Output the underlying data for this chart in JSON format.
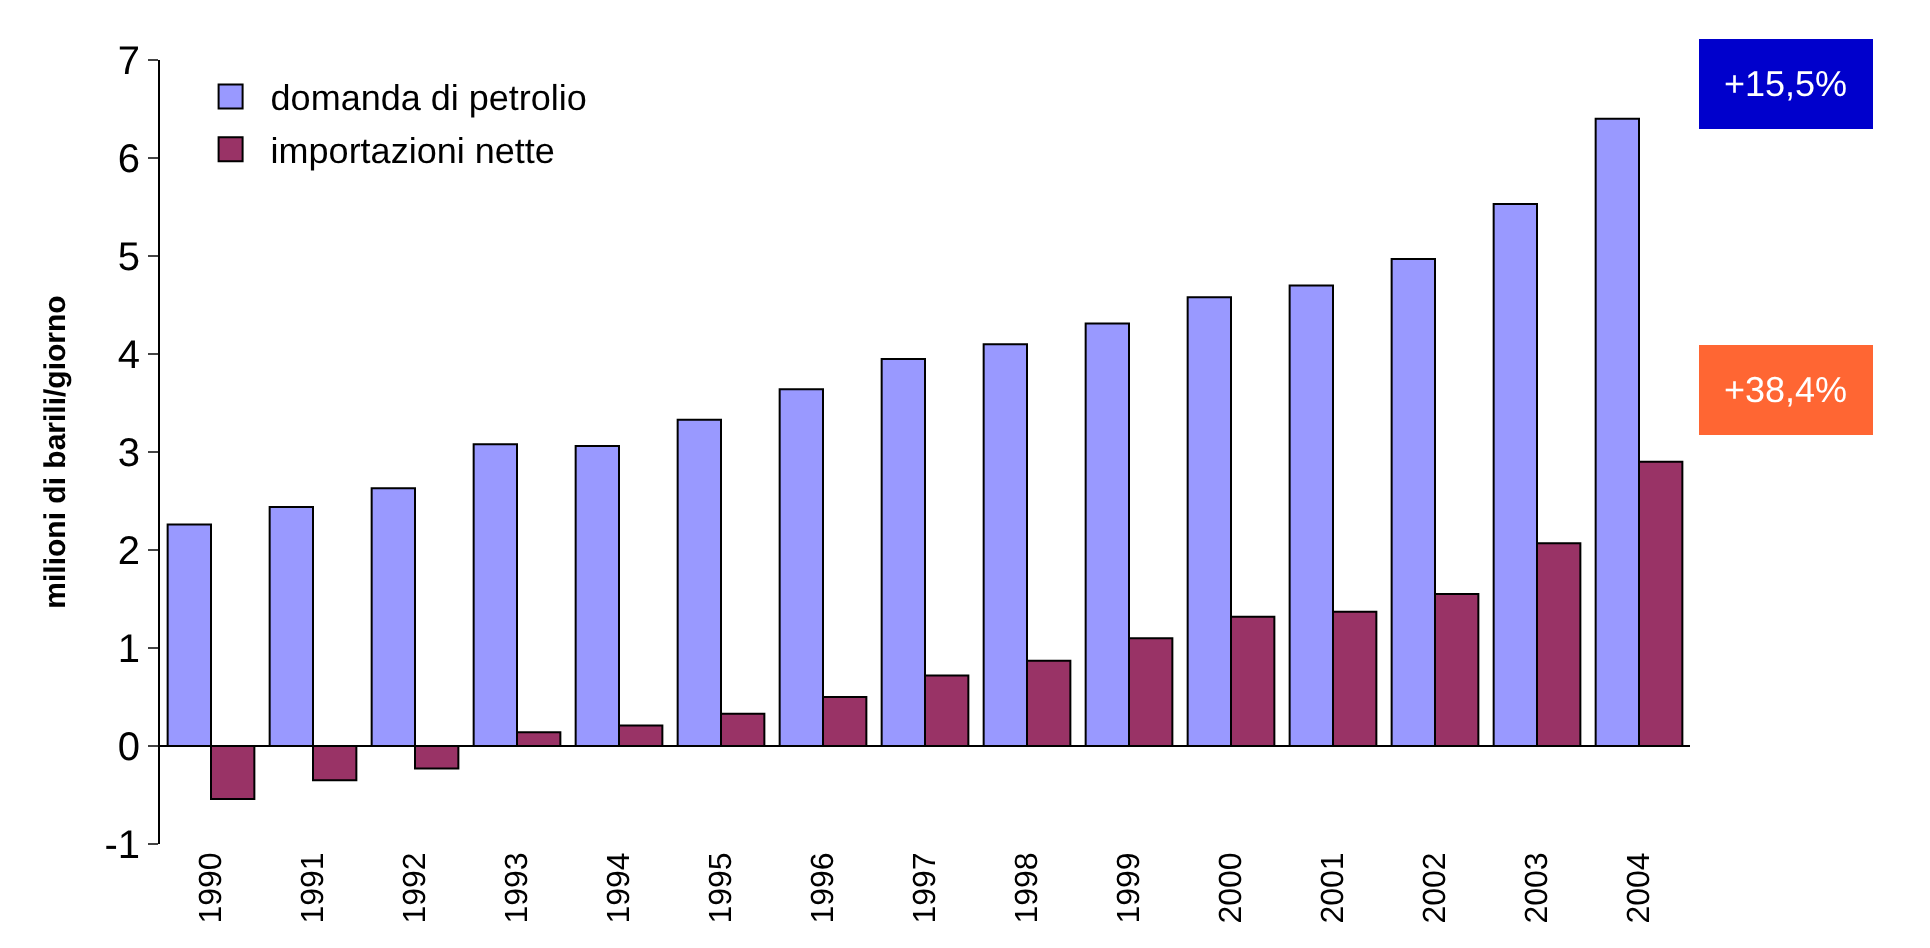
{
  "chart_data": {
    "type": "bar",
    "ylabel": "milioni di barili/giorno",
    "categories": [
      "1990",
      "1991",
      "1992",
      "1993",
      "1994",
      "1995",
      "1996",
      "1997",
      "1998",
      "1999",
      "2000",
      "2001",
      "2002",
      "2003",
      "2004"
    ],
    "series": [
      {
        "name": "domanda di petrolio",
        "color": "#9999ff",
        "values": [
          2.26,
          2.44,
          2.63,
          3.08,
          3.06,
          3.33,
          3.64,
          3.95,
          4.1,
          4.31,
          4.58,
          4.7,
          4.97,
          5.53,
          6.4
        ]
      },
      {
        "name": "importazioni nette",
        "color": "#993366",
        "values": [
          -0.54,
          -0.35,
          -0.23,
          0.14,
          0.21,
          0.33,
          0.5,
          0.72,
          0.87,
          1.1,
          1.32,
          1.37,
          1.55,
          2.07,
          2.9
        ]
      }
    ],
    "annotations": [
      "+15,5%",
      "+38,4%"
    ],
    "ylim": [
      -1,
      7
    ],
    "yticks": [
      -1,
      0,
      1,
      2,
      3,
      4,
      5,
      6,
      7
    ],
    "legend": "top left"
  }
}
